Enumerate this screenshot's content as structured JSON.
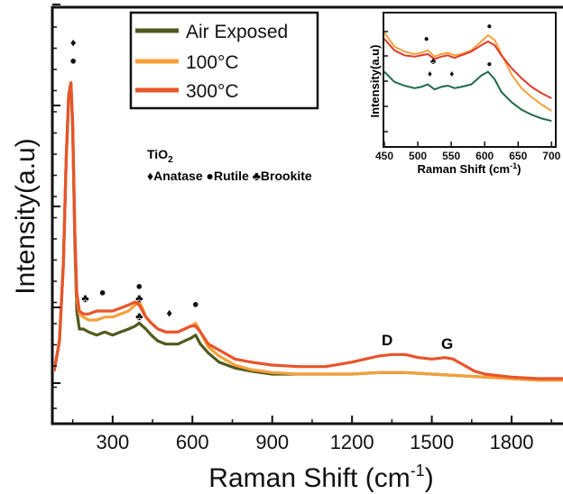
{
  "chart_data": [
    {
      "type": "line",
      "xlabel": "Raman Shift (cm",
      "xlabel_sup": "-1",
      "xlabel_end": ")",
      "ylabel": "Intensity(a.u)",
      "xlim": [
        80,
        2000
      ],
      "ylim": [
        0,
        105
      ],
      "x_ticks": [
        300,
        600,
        900,
        1200,
        1500,
        1800
      ],
      "y_ticks_shown_as_marks_only": true,
      "legend_placement": "top-center",
      "series": [
        {
          "name": "Air Exposed",
          "color": "#4f5a1e",
          "x": [
            80,
            100,
            115,
            125,
            135,
            143,
            150,
            158,
            165,
            175,
            190,
            210,
            240,
            270,
            300,
            330,
            360,
            385,
            400,
            412,
            425,
            445,
            470,
            500,
            520,
            545,
            570,
            595,
            612,
            630,
            660,
            700,
            760,
            820,
            900,
            1000,
            1100,
            1200,
            1300,
            1400,
            1500,
            1600,
            1700,
            1800,
            1900,
            2000
          ],
          "y": [
            4,
            14,
            40,
            74,
            96,
            100,
            84,
            46,
            24,
            18,
            18,
            17,
            16,
            17,
            16,
            17,
            18,
            19,
            20,
            19,
            18,
            16,
            14,
            13,
            13,
            13,
            14,
            15,
            16,
            13,
            10,
            7,
            5,
            4,
            3,
            3,
            3,
            3,
            3.5,
            3.5,
            3,
            2.5,
            2,
            1.5,
            1,
            1
          ]
        },
        {
          "name": "100°C",
          "color": "#f6a03a",
          "x": [
            80,
            100,
            115,
            125,
            135,
            143,
            150,
            158,
            165,
            175,
            190,
            210,
            240,
            270,
            300,
            330,
            360,
            385,
            400,
            412,
            425,
            445,
            470,
            500,
            520,
            545,
            570,
            595,
            612,
            630,
            660,
            700,
            760,
            820,
            900,
            1000,
            1100,
            1200,
            1300,
            1400,
            1500,
            1600,
            1700,
            1800,
            1900,
            2000
          ],
          "y": [
            4,
            14,
            40,
            74,
            96,
            100,
            86,
            50,
            28,
            23,
            22,
            21,
            21,
            22,
            22,
            23,
            24,
            26,
            27,
            25,
            22,
            20,
            18,
            17,
            17,
            17,
            18,
            19,
            20,
            17,
            12,
            9,
            6,
            4.5,
            3.5,
            3,
            3,
            3,
            3.5,
            3.5,
            3,
            2.5,
            2,
            1.5,
            1,
            1
          ]
        },
        {
          "name": "300°C",
          "color": "#e8542a",
          "x": [
            80,
            100,
            115,
            125,
            135,
            143,
            150,
            158,
            165,
            175,
            190,
            210,
            240,
            270,
            300,
            330,
            360,
            385,
            400,
            412,
            425,
            445,
            470,
            500,
            520,
            545,
            570,
            595,
            612,
            630,
            660,
            700,
            760,
            820,
            900,
            1000,
            1100,
            1200,
            1250,
            1300,
            1350,
            1400,
            1450,
            1500,
            1550,
            1580,
            1620,
            1660,
            1700,
            1750,
            1800,
            1900,
            2000
          ],
          "y": [
            4,
            14,
            40,
            74,
            96,
            100,
            86,
            50,
            30,
            24,
            23,
            23,
            24,
            24,
            24,
            25,
            26,
            27,
            26,
            24,
            22,
            20,
            18,
            17,
            17,
            17,
            18,
            19,
            19,
            17,
            13,
            11,
            8,
            7,
            6,
            5.5,
            5.5,
            7,
            8,
            9,
            9.5,
            9.5,
            8.5,
            8,
            8.5,
            8,
            6,
            4,
            3,
            2.5,
            2,
            1.5,
            1.5
          ]
        }
      ]
    },
    {
      "type": "line",
      "xlabel": "Raman Shift (cm",
      "xlabel_sup": "-1",
      "xlabel_end": ")",
      "ylabel": "Intensity(a.u)",
      "xlim": [
        450,
        705
      ],
      "ylim": [
        0,
        10
      ],
      "x_ticks": [
        450,
        500,
        550,
        600,
        650,
        700
      ],
      "series": [
        {
          "name": "Air Exposed",
          "color": "#1f6b4a",
          "x": [
            450,
            465,
            480,
            495,
            505,
            515,
            525,
            535,
            545,
            555,
            565,
            580,
            595,
            605,
            615,
            625,
            640,
            655,
            670,
            685,
            700
          ],
          "y": [
            5.6,
            4.8,
            4.5,
            4.3,
            4.4,
            4.6,
            4.2,
            4.4,
            4.5,
            4.3,
            4.4,
            4.6,
            5.3,
            5.6,
            5.0,
            4.0,
            3.2,
            2.6,
            2.2,
            1.9,
            1.7
          ]
        },
        {
          "name": "100°C",
          "color": "#f6a03a",
          "x": [
            450,
            465,
            480,
            495,
            505,
            515,
            525,
            535,
            545,
            555,
            565,
            580,
            595,
            605,
            615,
            625,
            640,
            655,
            670,
            685,
            700
          ],
          "y": [
            8.7,
            7.6,
            7.2,
            7.0,
            7.1,
            7.3,
            6.8,
            7.0,
            7.1,
            6.9,
            7.0,
            7.3,
            8.0,
            8.5,
            8.1,
            7.0,
            5.4,
            4.3,
            3.6,
            3.0,
            2.5
          ]
        },
        {
          "name": "300°C",
          "color": "#e03a2a",
          "x": [
            450,
            465,
            480,
            495,
            505,
            515,
            525,
            535,
            545,
            555,
            565,
            580,
            595,
            605,
            615,
            625,
            640,
            655,
            670,
            685,
            700
          ],
          "y": [
            8.2,
            7.3,
            6.9,
            6.8,
            6.9,
            7.0,
            6.6,
            6.8,
            6.9,
            6.7,
            6.9,
            7.2,
            7.7,
            8.0,
            7.7,
            6.9,
            5.9,
            5.1,
            4.4,
            3.9,
            3.5
          ]
        }
      ]
    }
  ],
  "labels": {
    "tio2_base": "TiO",
    "tio2_sub": "2",
    "phase_line": "♦Anatase ●Rutile ♣Brookite",
    "peak_d": "D",
    "peak_g": "G"
  },
  "markers": [
    {
      "sym": "♦",
      "x": 152,
      "y": 112
    },
    {
      "sym": "●",
      "x": 152,
      "y": 106
    },
    {
      "sym": "♣",
      "x": 197,
      "y": 27
    },
    {
      "sym": "●",
      "x": 262,
      "y": 29
    },
    {
      "sym": "●",
      "x": 400,
      "y": 31
    },
    {
      "sym": "♣",
      "x": 400,
      "y": 27
    },
    {
      "sym": "♣",
      "x": 400,
      "y": 21
    },
    {
      "sym": "♦",
      "x": 513,
      "y": 22
    },
    {
      "sym": "●",
      "x": 612,
      "y": 25
    }
  ],
  "inset_markers": [
    {
      "sym": "●",
      "x": 513,
      "y": 8.0
    },
    {
      "sym": "♣",
      "x": 523,
      "y": 6.2
    },
    {
      "sym": "♦",
      "x": 518,
      "y": 5.2
    },
    {
      "sym": "♦",
      "x": 551,
      "y": 5.2
    },
    {
      "sym": "●",
      "x": 607,
      "y": 9.0
    },
    {
      "sym": "●",
      "x": 607,
      "y": 6.0
    }
  ]
}
